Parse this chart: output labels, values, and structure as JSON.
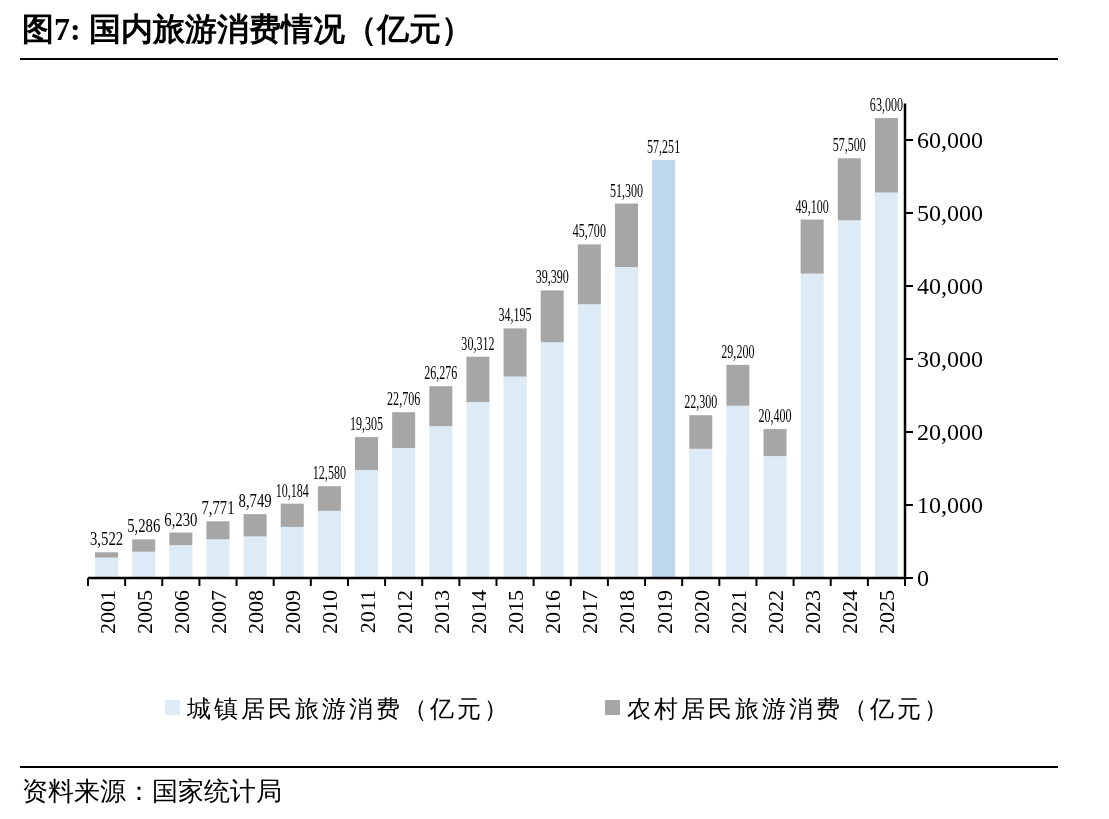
{
  "chart_data": {
    "type": "bar",
    "title": "图7:  国内旅游消费情况（亿元）",
    "categories": [
      "2001",
      "2005",
      "2006",
      "2007",
      "2008",
      "2009",
      "2010",
      "2011",
      "2012",
      "2013",
      "2014",
      "2015",
      "2016",
      "2017",
      "2018",
      "2019",
      "2020",
      "2021",
      "2022",
      "2023",
      "2024",
      "2025"
    ],
    "stacked": true,
    "series": [
      {
        "name": "城镇居民旅游消费（亿元）",
        "color": "#ddebf7",
        "values": [
          2800,
          3600,
          4500,
          5300,
          5700,
          7000,
          9200,
          14800,
          17800,
          20800,
          24100,
          27600,
          32300,
          37500,
          42600,
          null,
          17700,
          23600,
          16700,
          41700,
          49000,
          52800
        ]
      },
      {
        "name": "农村居民旅游消费（亿元）",
        "color": "#a6a6a6",
        "values": [
          722,
          1686,
          1730,
          2471,
          3049,
          3184,
          3380,
          4505,
          4906,
          5476,
          6212,
          6595,
          7090,
          8200,
          8700,
          null,
          4600,
          5600,
          3700,
          7400,
          8500,
          10200
        ]
      },
      {
        "color": "#bdd7ee",
        "values": [
          null,
          null,
          null,
          null,
          null,
          null,
          null,
          null,
          null,
          null,
          null,
          null,
          null,
          null,
          null,
          57251,
          null,
          null,
          null,
          null,
          null,
          null
        ]
      }
    ],
    "totals": [
      "3,522",
      "5,286",
      "6,230",
      "7,771",
      "8,749",
      "10,184",
      "12,580",
      "19,305",
      "22,706",
      "26,276",
      "30,312",
      "34,195",
      "39,390",
      "45,700",
      "51,300",
      "57,251",
      "22,300",
      "29,200",
      "20,400",
      "49,100",
      "57,500",
      "63,000"
    ],
    "ylim": [
      0,
      65000
    ],
    "yticks": [
      0,
      {
        "value": 10000,
        "label": "10,000"
      },
      {
        "value": 20000,
        "label": "20,000"
      },
      {
        "value": 30000,
        "label": "30,000"
      },
      {
        "value": 40000,
        "label": "40,000"
      },
      {
        "value": 50000,
        "label": "50,000"
      },
      {
        "value": 60000,
        "label": "60,000"
      }
    ],
    "grid": false,
    "legend": "bottom",
    "annotations": [
      "资料来源：国家统计局"
    ]
  }
}
